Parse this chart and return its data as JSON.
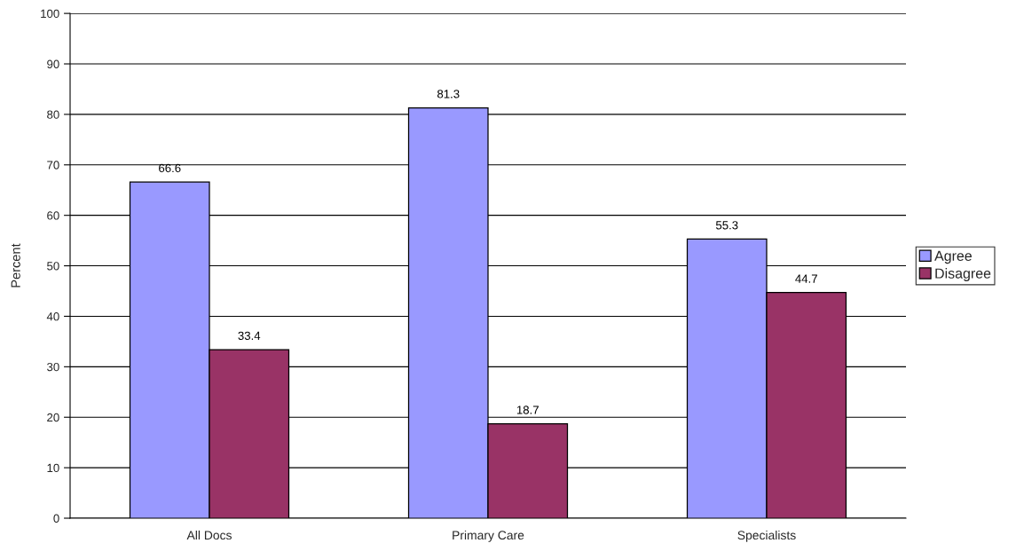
{
  "chart_data": {
    "type": "bar",
    "ylabel": "Percent",
    "categories": [
      "All Docs",
      "Primary Care",
      "Specialists"
    ],
    "series": [
      {
        "name": "Agree",
        "color": "#9999ff",
        "values": [
          66.6,
          81.3,
          55.3
        ]
      },
      {
        "name": "Disagree",
        "color": "#993366",
        "values": [
          33.4,
          18.7,
          44.7
        ]
      }
    ],
    "ylim": [
      0,
      100
    ],
    "yticks": [
      0,
      10,
      20,
      30,
      40,
      50,
      60,
      70,
      80,
      90,
      100
    ],
    "grid": "y",
    "legend": "right",
    "data_labels": true
  }
}
